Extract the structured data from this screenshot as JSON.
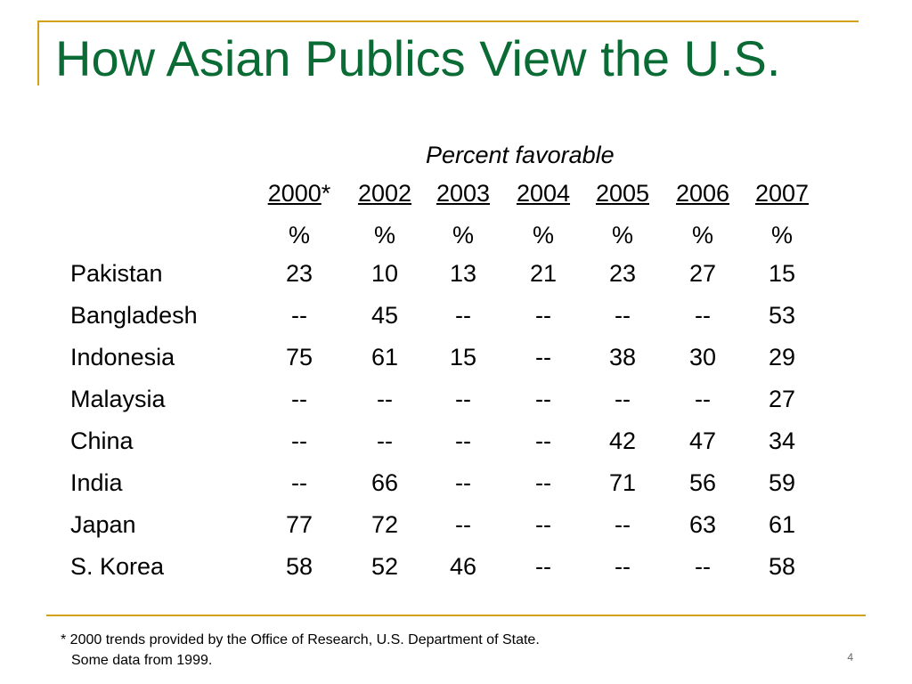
{
  "slide": {
    "title": "How Asian Publics View the U.S.",
    "page_number": "4"
  },
  "table": {
    "subhead": "Percent favorable",
    "years": [
      {
        "label": "2000",
        "suffix": "*"
      },
      {
        "label": "2002",
        "suffix": ""
      },
      {
        "label": "2003",
        "suffix": ""
      },
      {
        "label": "2004",
        "suffix": ""
      },
      {
        "label": "2005",
        "suffix": ""
      },
      {
        "label": "2006",
        "suffix": ""
      },
      {
        "label": "2007",
        "suffix": ""
      }
    ],
    "unit": "%",
    "rows": [
      {
        "country": "Pakistan",
        "values": [
          "23",
          "10",
          "13",
          "21",
          "23",
          "27",
          "15"
        ]
      },
      {
        "country": "Bangladesh",
        "values": [
          "--",
          "45",
          "--",
          "--",
          "--",
          "--",
          "53"
        ]
      },
      {
        "country": "Indonesia",
        "values": [
          "75",
          "61",
          "15",
          "--",
          "38",
          "30",
          "29"
        ]
      },
      {
        "country": "Malaysia",
        "values": [
          "--",
          "--",
          "--",
          "--",
          "--",
          "--",
          "27"
        ]
      },
      {
        "country": "China",
        "values": [
          "--",
          "--",
          "--",
          "--",
          "42",
          "47",
          "34"
        ]
      },
      {
        "country": "India",
        "values": [
          "--",
          "66",
          "--",
          "--",
          "71",
          "56",
          "59"
        ]
      },
      {
        "country": "Japan",
        "values": [
          "77",
          "72",
          "--",
          "--",
          "--",
          "63",
          "61"
        ]
      },
      {
        "country": "S. Korea",
        "values": [
          "58",
          "52",
          "46",
          "--",
          "--",
          "--",
          "58"
        ]
      }
    ]
  },
  "footnote": {
    "line1": "* 2000 trends provided by the Office of Research, U.S. Department of State.",
    "line2": "Some data from 1999."
  },
  "colors": {
    "title": "#0b6b35",
    "rule": "#d4a017"
  }
}
